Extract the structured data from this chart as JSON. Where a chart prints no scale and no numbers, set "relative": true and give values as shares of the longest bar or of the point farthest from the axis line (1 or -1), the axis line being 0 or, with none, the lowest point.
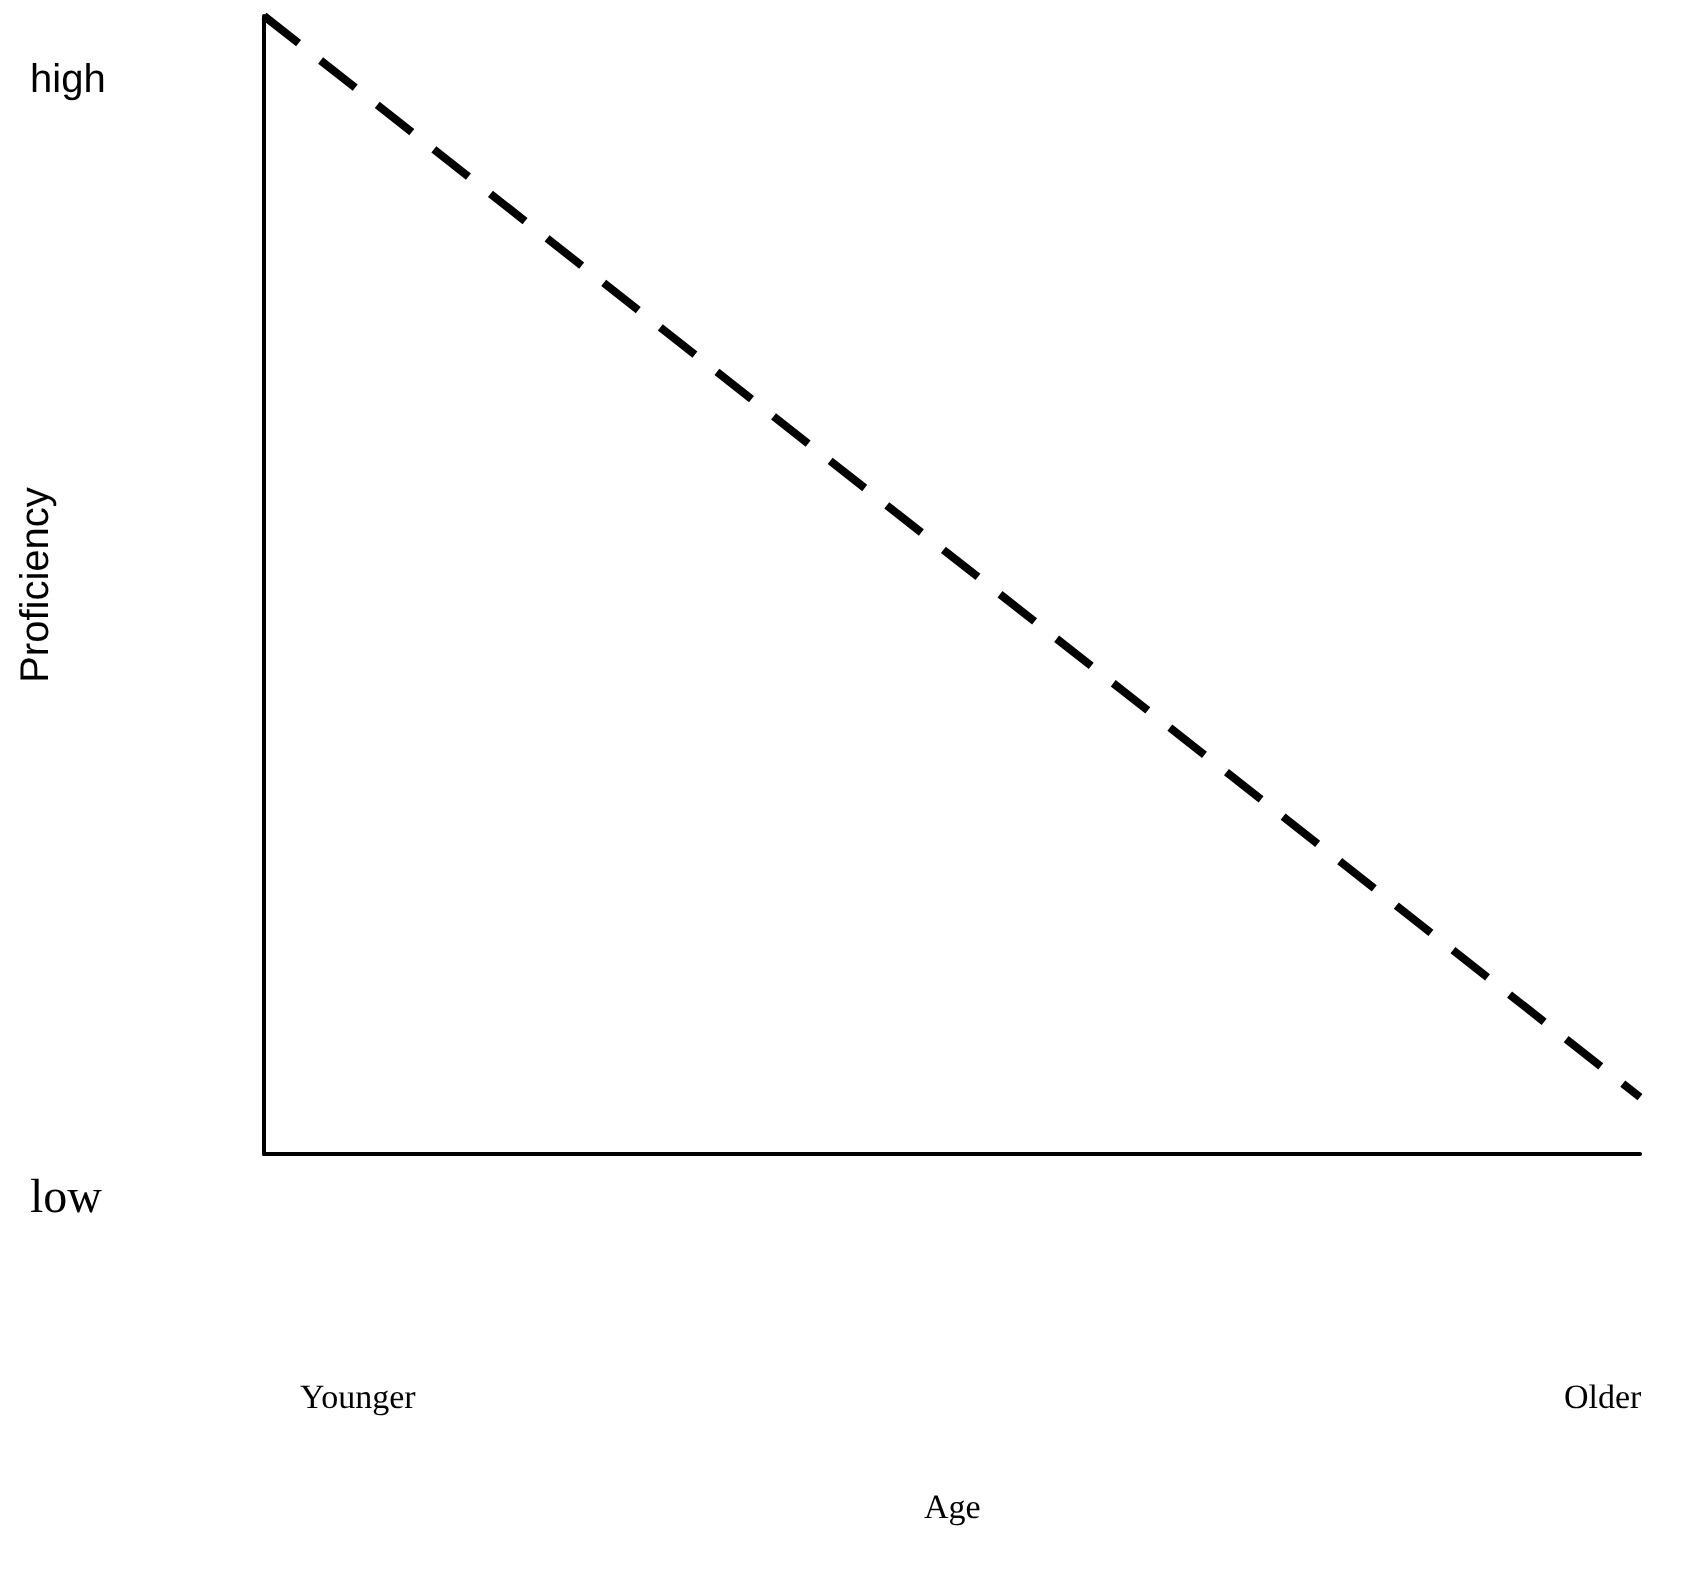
{
  "chart_data": {
    "type": "line",
    "relative": true,
    "categories": [
      null,
      null
    ],
    "series": [
      {
        "color": "#000000",
        "values": [
          1,
          0.05
        ]
      }
    ],
    "line_style": "dashed",
    "marker": "none",
    "grid": false,
    "ylabel": "Proficiency",
    "annotations": [
      "high",
      "low",
      "Younger",
      "Older",
      "Age"
    ]
  }
}
